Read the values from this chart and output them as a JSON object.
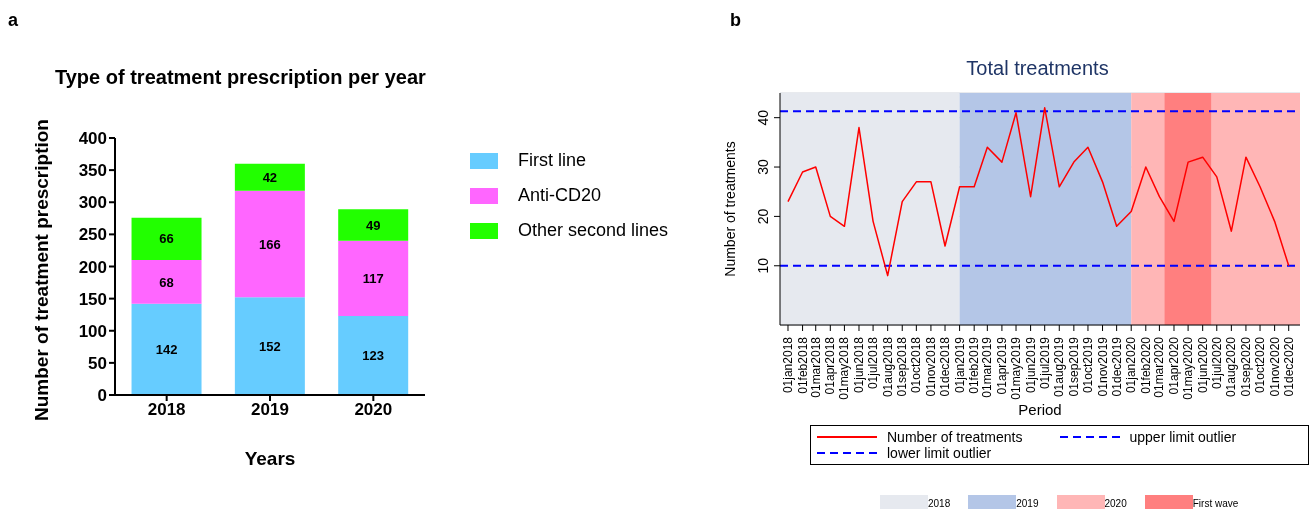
{
  "chart_data": [
    {
      "type": "bar",
      "title": "Type of treatment prescription per year",
      "xlabel": "Years",
      "ylabel": "Number of treatment prescription",
      "annotations": [
        "a"
      ],
      "categories": [
        "2018",
        "2019",
        "2020"
      ],
      "stacked": true,
      "series": [
        {
          "name": "First line",
          "color": "#66ccff",
          "values": [
            142,
            152,
            123
          ]
        },
        {
          "name": "Anti-CD20",
          "color": "#ff66ff",
          "values": [
            68,
            166,
            117
          ]
        },
        {
          "name": "Other second lines",
          "color": "#22ff00",
          "values": [
            66,
            42,
            49
          ]
        }
      ],
      "ylim": [
        0,
        400
      ],
      "yticks": [
        0,
        50,
        100,
        150,
        200,
        250,
        300,
        350,
        400
      ],
      "data_labels": true,
      "grid": false,
      "legend": "right"
    },
    {
      "type": "line",
      "title": "Total treatments",
      "xlabel": "Period",
      "ylabel": "Number of treatments",
      "annotations": [
        "b"
      ],
      "x": [
        "2018-01-01",
        "2018-02-01",
        "2018-03-01",
        "2018-04-01",
        "2018-05-01",
        "2018-06-01",
        "2018-07-01",
        "2018-08-01",
        "2018-09-01",
        "2018-10-01",
        "2018-11-01",
        "2018-12-01",
        "2019-01-01",
        "2019-02-01",
        "2019-03-01",
        "2019-04-01",
        "2019-05-01",
        "2019-06-01",
        "2019-07-01",
        "2019-08-01",
        "2019-09-01",
        "2019-10-01",
        "2019-11-01",
        "2019-12-01",
        "2020-01-01",
        "2020-02-01",
        "2020-03-01",
        "2020-04-01",
        "2020-05-01",
        "2020-06-01",
        "2020-07-01",
        "2020-08-01",
        "2020-09-01",
        "2020-10-01",
        "2020-11-01",
        "2020-12-01"
      ],
      "series": [
        {
          "name": "Number of treatments",
          "color": "#ff0000",
          "line_style": "solid",
          "values": [
            23,
            29,
            30,
            20,
            18,
            38,
            19,
            8,
            23,
            27,
            27,
            14,
            26,
            26,
            34,
            31,
            41,
            24,
            42,
            26,
            31,
            34,
            27,
            18,
            21,
            30,
            24,
            19,
            31,
            32,
            28,
            17,
            32,
            26,
            19,
            10
          ]
        }
      ],
      "xlim": [
        "2017-12-15",
        "2020-12-25"
      ],
      "xticks": [
        {
          "value": "2018-01-01",
          "label": "01jan2018"
        },
        {
          "value": "2018-02-01",
          "label": "01feb2018"
        },
        {
          "value": "2018-03-01",
          "label": "01mar2018"
        },
        {
          "value": "2018-04-01",
          "label": "01apr2018"
        },
        {
          "value": "2018-05-01",
          "label": "01may2018"
        },
        {
          "value": "2018-06-01",
          "label": "01jun2018"
        },
        {
          "value": "2018-07-01",
          "label": "01jul2018"
        },
        {
          "value": "2018-08-01",
          "label": "01aug2018"
        },
        {
          "value": "2018-09-01",
          "label": "01sep2018"
        },
        {
          "value": "2018-10-01",
          "label": "01oct2018"
        },
        {
          "value": "2018-11-01",
          "label": "01nov2018"
        },
        {
          "value": "2018-12-01",
          "label": "01dec2018"
        },
        {
          "value": "2019-01-01",
          "label": "01jan2019"
        },
        {
          "value": "2019-02-01",
          "label": "01feb2019"
        },
        {
          "value": "2019-03-01",
          "label": "01mar2019"
        },
        {
          "value": "2019-04-01",
          "label": "01apr2019"
        },
        {
          "value": "2019-05-01",
          "label": "01may2019"
        },
        {
          "value": "2019-06-01",
          "label": "01jun2019"
        },
        {
          "value": "2019-07-01",
          "label": "01jul2019"
        },
        {
          "value": "2019-08-01",
          "label": "01aug2019"
        },
        {
          "value": "2019-09-01",
          "label": "01sep2019"
        },
        {
          "value": "2019-10-01",
          "label": "01oct2019"
        },
        {
          "value": "2019-11-01",
          "label": "01nov2019"
        },
        {
          "value": "2019-12-01",
          "label": "01dec2019"
        },
        {
          "value": "2020-01-01",
          "label": "01jan2020"
        },
        {
          "value": "2020-02-01",
          "label": "01feb2020"
        },
        {
          "value": "2020-03-01",
          "label": "01mar2020"
        },
        {
          "value": "2020-04-01",
          "label": "01apr2020"
        },
        {
          "value": "2020-05-01",
          "label": "01may2020"
        },
        {
          "value": "2020-06-01",
          "label": "01jun2020"
        },
        {
          "value": "2020-07-01",
          "label": "01jul2020"
        },
        {
          "value": "2020-08-01",
          "label": "01aug2020"
        },
        {
          "value": "2020-09-01",
          "label": "01sep2020"
        },
        {
          "value": "2020-10-01",
          "label": "01oct2020"
        },
        {
          "value": "2020-11-01",
          "label": "01nov2020"
        },
        {
          "value": "2020-12-01",
          "label": "01dec2020"
        }
      ],
      "ylim": [
        -2,
        45
      ],
      "yticks": [
        10,
        20,
        30,
        40
      ],
      "grid": "y",
      "legend": "bottom",
      "ref_lines": [
        {
          "axis": "y",
          "value": 41.3,
          "label": "upper limit outlier",
          "color": "#0000ff",
          "line_style": "dashed"
        },
        {
          "axis": "y",
          "value": 10,
          "label": "lower limit outlier",
          "color": "#0000ff",
          "line_style": "dashed"
        }
      ],
      "bands": [
        {
          "axis": "x",
          "from": "2017-12-15",
          "to": "2019-01-01",
          "label": "2018",
          "color": "#e6e9ef"
        },
        {
          "axis": "x",
          "from": "2019-01-01",
          "to": "2020-01-01",
          "label": "2019",
          "color": "#b4c6e7"
        },
        {
          "axis": "x",
          "from": "2020-01-01",
          "to": "2020-12-25",
          "label": "2020",
          "color": "#ffb6b6"
        },
        {
          "axis": "x",
          "from": "2020-03-12",
          "to": "2020-06-19",
          "label": "First wave",
          "color": "#ff7f7f"
        }
      ]
    }
  ]
}
